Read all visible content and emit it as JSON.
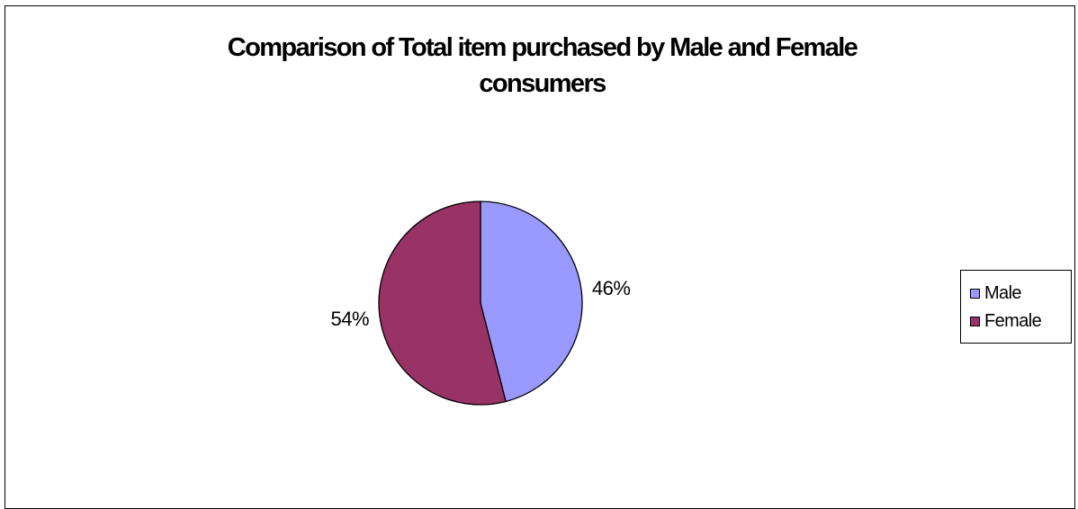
{
  "chart_data": {
    "type": "pie",
    "title": "Comparison of Total item purchased by Male and Female consumers",
    "title_lines": [
      "Comparison of Total item purchased by Male and Female",
      "consumers"
    ],
    "categories": [
      "Male",
      "Female"
    ],
    "values": [
      46,
      54
    ],
    "value_labels": [
      "46%",
      "54%"
    ],
    "colors": [
      "#9999ff",
      "#993366"
    ],
    "legend_position": "right"
  }
}
